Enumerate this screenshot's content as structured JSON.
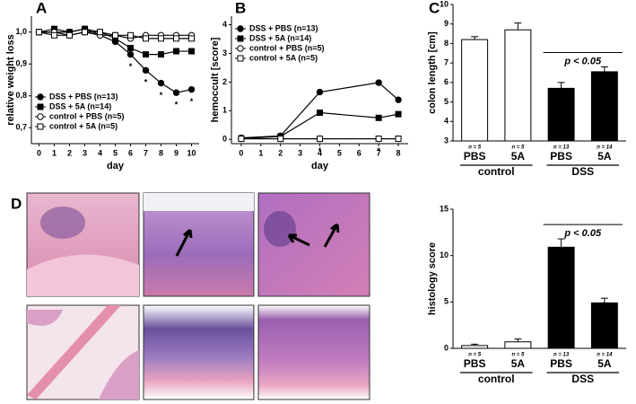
{
  "chart_data": [
    {
      "type": "line",
      "label": "A",
      "ylabel": "relative weight loss",
      "xlabel": "day",
      "x": [
        0,
        1,
        2,
        3,
        4,
        5,
        6,
        7,
        8,
        9,
        10
      ],
      "xlim": [
        -0.5,
        10.5
      ],
      "xticks": [
        0,
        1,
        2,
        3,
        4,
        5,
        6,
        7,
        8,
        9,
        10
      ],
      "ylim": [
        0.65,
        1.05
      ],
      "yticks": [
        {
          "value": 0.7,
          "label": "0,7"
        },
        {
          "value": 0.8,
          "label": "0,8"
        },
        {
          "value": 0.9,
          "label": "0,9"
        },
        {
          "value": 1.0,
          "label": "1,0"
        }
      ],
      "legend": "lower left",
      "significance_mark": "*",
      "significance_x": [
        6,
        7,
        8,
        9,
        10
      ],
      "series": [
        {
          "name": "DSS + PBS (n=13)",
          "color": "#000000",
          "marker": "circle",
          "filled": true,
          "values": [
            1.0,
            1.0,
            1.0,
            1.01,
            0.99,
            0.97,
            0.93,
            0.88,
            0.84,
            0.81,
            0.82
          ]
        },
        {
          "name": "DSS + 5A (n=14)",
          "color": "#000000",
          "marker": "square",
          "filled": true,
          "values": [
            1.0,
            1.01,
            1.0,
            1.01,
            1.0,
            0.98,
            0.95,
            0.93,
            0.93,
            0.94,
            0.94
          ]
        },
        {
          "name": "control + PBS (n=5)",
          "color": "#000000",
          "marker": "circle",
          "filled": false,
          "values": [
            1.0,
            1.0,
            0.99,
            1.0,
            0.99,
            0.99,
            0.98,
            0.99,
            0.99,
            0.99,
            0.99
          ]
        },
        {
          "name": "control + 5A (n=5)",
          "color": "#000000",
          "marker": "square",
          "filled": false,
          "values": [
            1.0,
            0.99,
            0.99,
            1.0,
            1.0,
            0.99,
            0.99,
            0.98,
            0.98,
            0.98,
            0.98
          ]
        }
      ]
    },
    {
      "type": "line",
      "label": "B",
      "ylabel": "hemoccult [score]",
      "xlabel": "day",
      "x": [
        0,
        2,
        4,
        7,
        8
      ],
      "xlim": [
        -0.5,
        8.5
      ],
      "xticks": [
        0,
        1,
        2,
        3,
        4,
        5,
        6,
        7,
        8
      ],
      "ylim": [
        -0.15,
        4.3
      ],
      "yticks": [
        0,
        1,
        2,
        3,
        4
      ],
      "legend": "upper left",
      "significance_mark": "*",
      "significance_x": [
        4,
        7
      ],
      "series": [
        {
          "name": "DSS + PBS (n=13)",
          "color": "#000000",
          "marker": "circle",
          "filled": true,
          "values": [
            0.05,
            0.12,
            1.65,
            1.98,
            1.38
          ]
        },
        {
          "name": "DSS + 5A (n=14)",
          "color": "#000000",
          "marker": "square",
          "filled": true,
          "values": [
            0.03,
            0.1,
            0.93,
            0.75,
            0.88
          ]
        },
        {
          "name": "control + PBS (n=5)",
          "color": "#000000",
          "marker": "circle",
          "filled": false,
          "values": [
            0.02,
            0.02,
            0.02,
            0.02,
            0.02
          ]
        },
        {
          "name": "control + 5A (n=5)",
          "color": "#000000",
          "marker": "square",
          "filled": false,
          "values": [
            0.02,
            0.02,
            0.02,
            0.02,
            0.02
          ]
        }
      ]
    },
    {
      "type": "bar",
      "label": "C",
      "ylabel": "colon length [cm]",
      "categories": [
        "PBS",
        "5A",
        "PBS",
        "5A"
      ],
      "n_labels": [
        "n = 5",
        "n = 5",
        "n = 13",
        "n = 14"
      ],
      "groups": [
        "control",
        "DSS"
      ],
      "values": [
        8.2,
        8.7,
        5.7,
        6.55
      ],
      "errors": [
        0.15,
        0.35,
        0.3,
        0.25
      ],
      "colors": [
        "#ffffff",
        "#ffffff",
        "#000000",
        "#000000"
      ],
      "annotation": "p < 0.05",
      "ylim": [
        3,
        10
      ],
      "yticks": [
        3,
        4,
        5,
        6,
        7,
        8,
        9,
        10
      ]
    },
    {
      "type": "bar",
      "ylabel": "histology score",
      "categories": [
        "PBS",
        "5A",
        "PBS",
        "5A"
      ],
      "n_labels": [
        "n = 5",
        "n = 5",
        "n = 13",
        "n = 14"
      ],
      "groups": [
        "control",
        "DSS"
      ],
      "values": [
        0.3,
        0.7,
        10.9,
        4.9
      ],
      "errors": [
        0.15,
        0.3,
        0.9,
        0.5
      ],
      "colors": [
        "#ffffff",
        "#ffffff",
        "#000000",
        "#000000"
      ],
      "annotation": "p < 0.05",
      "ylim": [
        0,
        15
      ],
      "yticks": [
        0,
        5,
        10,
        15
      ]
    }
  ],
  "panel_d": {
    "label": "D"
  }
}
